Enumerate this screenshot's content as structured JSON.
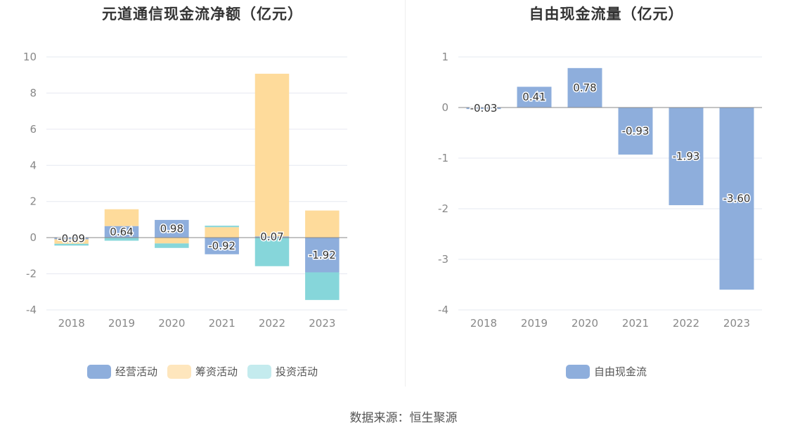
{
  "source": "数据来源：恒生聚源",
  "charts": [
    {
      "id": "left",
      "title": "元道通信现金流净额（亿元）",
      "colors": [
        "#8eaedc",
        "#fedb9b",
        "#86d6da"
      ],
      "legend_swatch_colors": [
        "#8eaedc",
        "#fee6bd",
        "#c4ebee"
      ],
      "legend": [
        "经营活动",
        "筹资活动",
        "投资活动"
      ],
      "yticks": [
        "10",
        "8",
        "6",
        "4",
        "2",
        "0",
        "-2",
        "-4"
      ],
      "xticks": [
        "2018",
        "2019",
        "2020",
        "2021",
        "2022",
        "2023"
      ]
    },
    {
      "id": "right",
      "title": "自由现金流量（亿元）",
      "colors": [
        "#8eaedc"
      ],
      "legend_swatch_colors": [
        "#8eaedc"
      ],
      "legend": [
        "自由现金流"
      ],
      "yticks": [
        "1",
        "0",
        "-1",
        "-2",
        "-3",
        "-4"
      ],
      "xticks": [
        "2018",
        "2019",
        "2020",
        "2021",
        "2022",
        "2023"
      ]
    }
  ],
  "chart_data": [
    {
      "type": "bar",
      "stacked": true,
      "title": "元道通信现金流净额（亿元）",
      "categories": [
        "2018",
        "2019",
        "2020",
        "2021",
        "2022",
        "2023"
      ],
      "ylim": [
        -4,
        10
      ],
      "grid": true,
      "legend_position": "bottom",
      "series": [
        {
          "name": "经营活动",
          "values": [
            -0.09,
            0.64,
            0.98,
            -0.92,
            0.07,
            -1.92
          ],
          "labels": [
            "-0.09",
            "0.64",
            "0.98",
            "-0.92",
            "0.07",
            "-1.92"
          ]
        },
        {
          "name": "筹资活动",
          "values": [
            -0.25,
            0.93,
            -0.32,
            0.58,
            9.0,
            1.5
          ]
        },
        {
          "name": "投资活动",
          "values": [
            -0.1,
            -0.17,
            -0.25,
            0.08,
            -1.58,
            -1.53
          ]
        }
      ]
    },
    {
      "type": "bar",
      "title": "自由现金流量（亿元）",
      "categories": [
        "2018",
        "2019",
        "2020",
        "2021",
        "2022",
        "2023"
      ],
      "ylim": [
        -4,
        1
      ],
      "grid": true,
      "legend_position": "bottom",
      "series": [
        {
          "name": "自由现金流",
          "values": [
            -0.03,
            0.41,
            0.78,
            -0.93,
            -1.93,
            -3.6
          ],
          "labels": [
            "-0.03",
            "0.41",
            "0.78",
            "-0.93",
            "-1.93",
            "-3.60"
          ]
        }
      ]
    }
  ]
}
